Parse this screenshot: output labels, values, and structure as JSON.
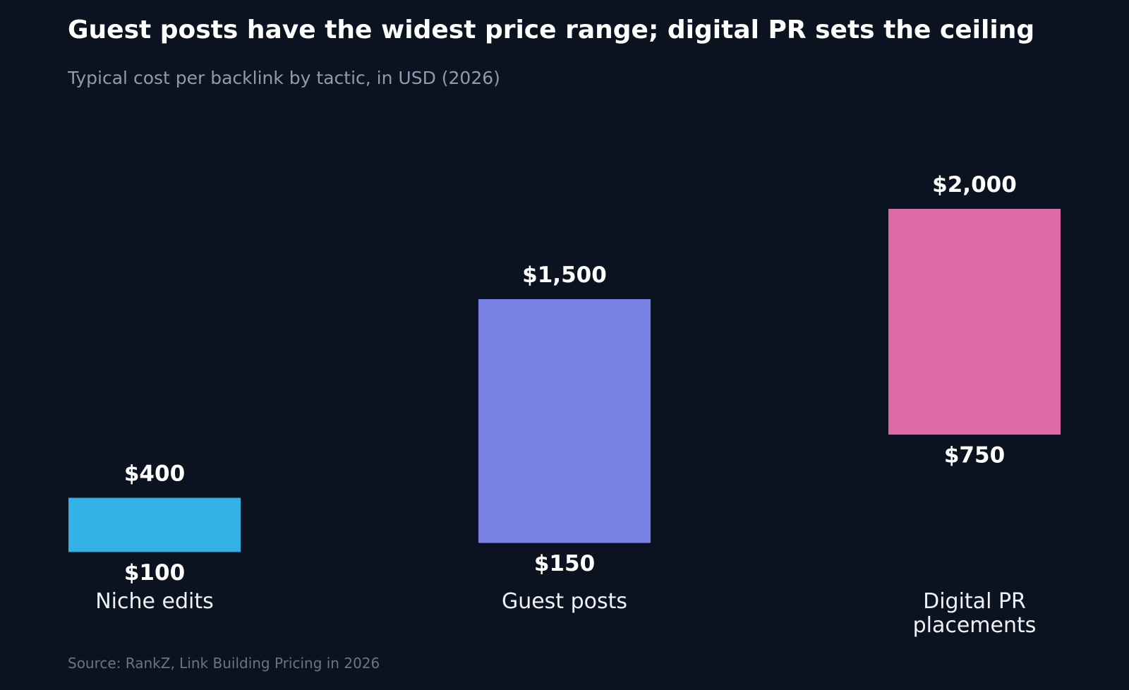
{
  "title": "Guest posts have the widest price range; digital PR sets the ceiling",
  "subtitle": "Typical cost per backlink by tactic, in USD (2026)",
  "source": "Source: RankZ, Link Building Pricing in 2026",
  "colors": {
    "background": "#0c1320",
    "niche_edits": "#33b0e6",
    "guest_posts": "#7880e4",
    "digital_pr": "#df6aa8"
  },
  "chart_data": {
    "type": "bar",
    "subtype": "floating-range",
    "title": "Guest posts have the widest price range; digital PR sets the ceiling",
    "subtitle": "Typical cost per backlink by tactic, in USD (2026)",
    "categories": [
      [
        "Niche edits"
      ],
      [
        "Guest posts"
      ],
      [
        "Digital PR",
        "placements"
      ]
    ],
    "series": [
      {
        "low": [
          100,
          150,
          750
        ],
        "high": [
          400,
          1500,
          2000
        ],
        "low_labels": [
          "$100",
          "$150",
          "$750"
        ],
        "high_labels": [
          "$400",
          "$1,500",
          "$2,000"
        ],
        "colors": [
          "#33b0e6",
          "#7880e4",
          "#df6aa8"
        ]
      }
    ],
    "ylim": [
      0,
      2000
    ],
    "grid": false,
    "legend": "none",
    "y_axis_visible": false
  }
}
